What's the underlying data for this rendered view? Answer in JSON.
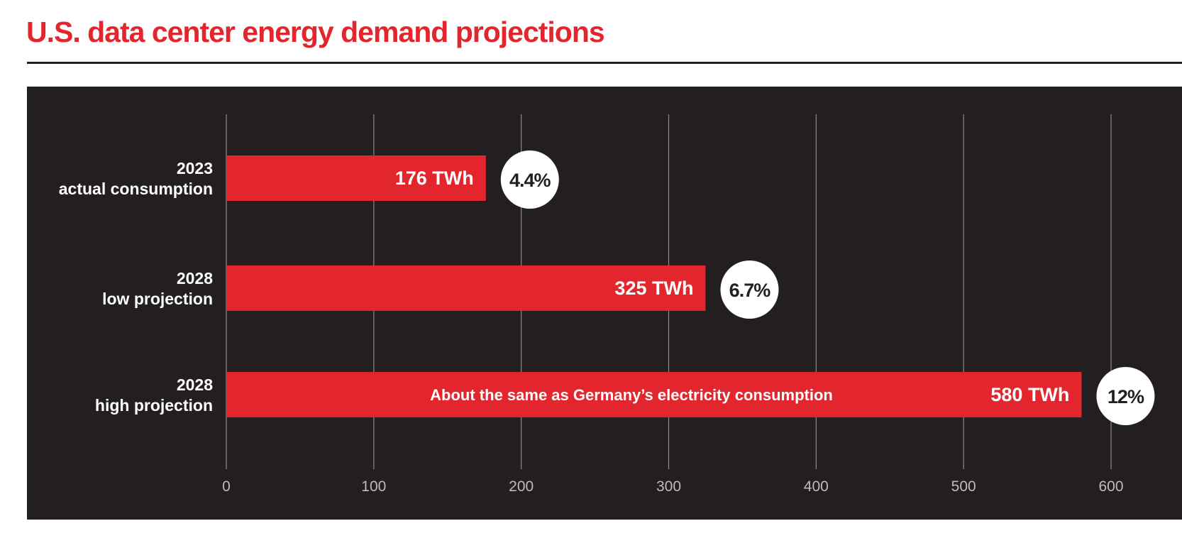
{
  "title": "U.S. data center energy demand projections",
  "colors": {
    "title": "#e3262d",
    "bar": "#e3262d",
    "background": "#231f20",
    "grid": "#8a8a8a",
    "tick_text": "#bcbcbc",
    "circle": "#ffffff",
    "circle_text": "#231f20"
  },
  "chart_data": {
    "type": "bar",
    "orientation": "horizontal",
    "title": "U.S. data center energy demand projections",
    "xlabel": "",
    "ylabel": "",
    "xlim": [
      0,
      600
    ],
    "xticks": [
      0,
      100,
      200,
      300,
      400,
      500,
      600
    ],
    "grid": true,
    "categories": [
      {
        "line1": "2023",
        "line2": "actual consumption"
      },
      {
        "line1": "2028",
        "line2": "low projection"
      },
      {
        "line1": "2028",
        "line2": "high projection"
      }
    ],
    "values": [
      176,
      325,
      580
    ],
    "unit": "TWh",
    "value_labels": [
      "176 TWh",
      "325 TWh",
      "580 TWh"
    ],
    "share_labels": [
      "4.4%",
      "6.7%",
      "12%"
    ],
    "annotations": [
      {
        "bar_index": 2,
        "text": "About the same as Germany’s electricity consumption"
      }
    ]
  }
}
